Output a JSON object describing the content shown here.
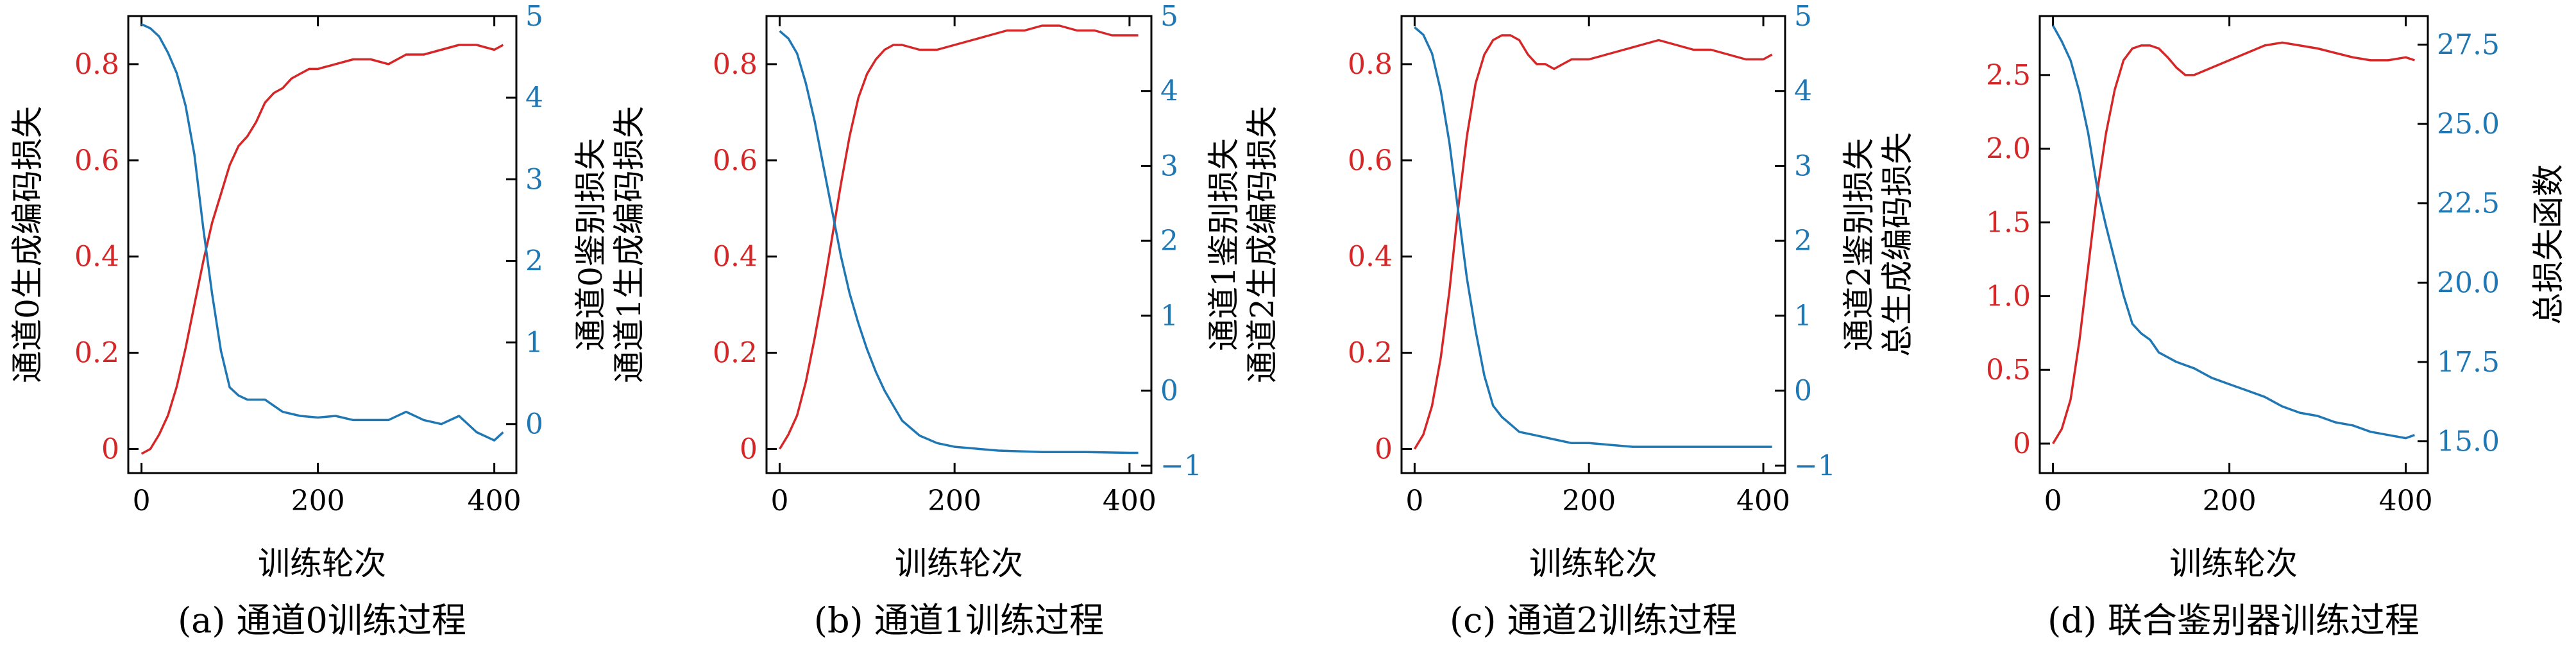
{
  "colors": {
    "left": "#d62728",
    "right": "#1f77b4",
    "axis": "#000000"
  },
  "panels": [
    {
      "caption": "(a) 通道0训练过程",
      "xlabel": "训练轮次",
      "ylabel_left": "通道0生成编码损失",
      "ylabel_right": [
        "通道0鉴别损失",
        "通道1生成编码损失"
      ]
    },
    {
      "caption": "(b) 通道1训练过程",
      "xlabel": "训练轮次",
      "ylabel_left": "",
      "ylabel_right": [
        "通道1鉴别损失",
        "通道2生成编码损失"
      ]
    },
    {
      "caption": "(c) 通道2训练过程",
      "xlabel": "训练轮次",
      "ylabel_left": "",
      "ylabel_right": [
        "通道2鉴别损失",
        "总生成编码损失"
      ]
    },
    {
      "caption": "(d) 联合鉴别器训练过程",
      "xlabel": "训练轮次",
      "ylabel_left": "",
      "ylabel_right": [
        "总损失函数"
      ]
    }
  ],
  "chart_data": [
    {
      "type": "line",
      "xlabel": "训练轮次",
      "xlim": [
        -15,
        425
      ],
      "xticks": [
        "0",
        "200",
        "400"
      ],
      "y_left": {
        "label": "通道0生成编码损失",
        "lim": [
          -0.05,
          0.9
        ],
        "ticks": [
          "0",
          "0.2",
          "0.4",
          "0.6",
          "0.8"
        ]
      },
      "y_right": {
        "label": "通道0鉴别损失",
        "lim": [
          -0.6,
          5
        ],
        "ticks": [
          "0",
          "1",
          "2",
          "3",
          "4",
          "5"
        ]
      },
      "series": [
        {
          "axis": "left",
          "color": "#d62728",
          "x": [
            0,
            10,
            20,
            30,
            40,
            50,
            60,
            70,
            80,
            90,
            100,
            110,
            120,
            130,
            140,
            150,
            160,
            170,
            180,
            190,
            200,
            220,
            240,
            260,
            280,
            300,
            320,
            340,
            360,
            380,
            400,
            410
          ],
          "y": [
            -0.01,
            0.0,
            0.03,
            0.07,
            0.13,
            0.21,
            0.3,
            0.39,
            0.47,
            0.53,
            0.59,
            0.63,
            0.65,
            0.68,
            0.72,
            0.74,
            0.75,
            0.77,
            0.78,
            0.79,
            0.79,
            0.8,
            0.81,
            0.81,
            0.8,
            0.82,
            0.82,
            0.83,
            0.84,
            0.84,
            0.83,
            0.84
          ]
        },
        {
          "axis": "right",
          "color": "#1f77b4",
          "x": [
            0,
            10,
            20,
            30,
            40,
            50,
            60,
            70,
            80,
            90,
            100,
            110,
            120,
            140,
            160,
            180,
            200,
            220,
            240,
            260,
            280,
            300,
            320,
            340,
            360,
            380,
            400,
            410
          ],
          "y": [
            4.9,
            4.85,
            4.75,
            4.55,
            4.3,
            3.9,
            3.3,
            2.4,
            1.6,
            0.9,
            0.45,
            0.35,
            0.3,
            0.3,
            0.15,
            0.1,
            0.08,
            0.1,
            0.05,
            0.05,
            0.05,
            0.15,
            0.05,
            0.0,
            0.1,
            -0.1,
            -0.2,
            -0.1
          ]
        }
      ]
    },
    {
      "type": "line",
      "xlabel": "训练轮次",
      "xlim": [
        -15,
        425
      ],
      "xticks": [
        "0",
        "200",
        "400"
      ],
      "y_left": {
        "label": "通道1生成编码损失",
        "lim": [
          -0.05,
          0.9
        ],
        "ticks": [
          "0",
          "0.2",
          "0.4",
          "0.6",
          "0.8"
        ]
      },
      "y_right": {
        "label": "通道1鉴别损失",
        "lim": [
          -1.1,
          5
        ],
        "ticks": [
          "−1",
          "0",
          "1",
          "2",
          "3",
          "4",
          "5"
        ]
      },
      "series": [
        {
          "axis": "left",
          "color": "#d62728",
          "x": [
            0,
            10,
            20,
            30,
            40,
            50,
            60,
            70,
            80,
            90,
            100,
            110,
            120,
            130,
            140,
            160,
            180,
            200,
            220,
            240,
            260,
            280,
            300,
            320,
            340,
            360,
            380,
            400,
            410
          ],
          "y": [
            0.0,
            0.03,
            0.07,
            0.14,
            0.23,
            0.33,
            0.44,
            0.55,
            0.65,
            0.73,
            0.78,
            0.81,
            0.83,
            0.84,
            0.84,
            0.83,
            0.83,
            0.84,
            0.85,
            0.86,
            0.87,
            0.87,
            0.88,
            0.88,
            0.87,
            0.87,
            0.86,
            0.86,
            0.86
          ]
        },
        {
          "axis": "right",
          "color": "#1f77b4",
          "x": [
            0,
            10,
            20,
            30,
            40,
            50,
            60,
            70,
            80,
            90,
            100,
            110,
            120,
            130,
            140,
            150,
            160,
            180,
            200,
            250,
            300,
            350,
            400,
            410
          ],
          "y": [
            4.8,
            4.7,
            4.5,
            4.1,
            3.6,
            3.0,
            2.4,
            1.8,
            1.3,
            0.9,
            0.55,
            0.25,
            0.0,
            -0.2,
            -0.4,
            -0.5,
            -0.6,
            -0.7,
            -0.75,
            -0.8,
            -0.82,
            -0.82,
            -0.83,
            -0.83
          ]
        }
      ]
    },
    {
      "type": "line",
      "xlabel": "训练轮次",
      "xlim": [
        -15,
        425
      ],
      "xticks": [
        "0",
        "200",
        "400"
      ],
      "y_left": {
        "label": "通道2生成编码损失",
        "lim": [
          -0.05,
          0.9
        ],
        "ticks": [
          "0",
          "0.2",
          "0.4",
          "0.6",
          "0.8"
        ]
      },
      "y_right": {
        "label": "通道2鉴别损失",
        "lim": [
          -1.1,
          5
        ],
        "ticks": [
          "−1",
          "0",
          "1",
          "2",
          "3",
          "4",
          "5"
        ]
      },
      "series": [
        {
          "axis": "left",
          "color": "#d62728",
          "x": [
            0,
            10,
            20,
            30,
            40,
            50,
            60,
            70,
            80,
            90,
            100,
            110,
            120,
            130,
            140,
            150,
            160,
            170,
            180,
            200,
            220,
            240,
            260,
            280,
            300,
            320,
            340,
            360,
            380,
            400,
            410
          ],
          "y": [
            0.0,
            0.03,
            0.09,
            0.19,
            0.33,
            0.5,
            0.65,
            0.76,
            0.82,
            0.85,
            0.86,
            0.86,
            0.85,
            0.82,
            0.8,
            0.8,
            0.79,
            0.8,
            0.81,
            0.81,
            0.82,
            0.83,
            0.84,
            0.85,
            0.84,
            0.83,
            0.83,
            0.82,
            0.81,
            0.81,
            0.82
          ]
        },
        {
          "axis": "right",
          "color": "#1f77b4",
          "x": [
            0,
            10,
            20,
            30,
            40,
            50,
            60,
            70,
            80,
            90,
            100,
            110,
            120,
            140,
            160,
            180,
            200,
            250,
            300,
            350,
            400,
            410
          ],
          "y": [
            4.85,
            4.75,
            4.5,
            4.0,
            3.3,
            2.4,
            1.5,
            0.8,
            0.2,
            -0.2,
            -0.35,
            -0.45,
            -0.55,
            -0.6,
            -0.65,
            -0.7,
            -0.7,
            -0.75,
            -0.75,
            -0.75,
            -0.75,
            -0.75
          ]
        }
      ]
    },
    {
      "type": "line",
      "xlabel": "训练轮次",
      "xlim": [
        -15,
        425
      ],
      "xticks": [
        "0",
        "200",
        "400"
      ],
      "y_left": {
        "label": "总生成编码损失",
        "lim": [
          -0.2,
          2.9
        ],
        "ticks": [
          "0",
          "0.5",
          "1.0",
          "1.5",
          "2.0",
          "2.5"
        ]
      },
      "y_right": {
        "label": "总损失函数",
        "lim": [
          14,
          28.4
        ],
        "ticks": [
          "15.0",
          "17.5",
          "20.0",
          "22.5",
          "25.0",
          "27.5"
        ]
      },
      "series": [
        {
          "axis": "left",
          "color": "#d62728",
          "x": [
            0,
            10,
            20,
            30,
            40,
            50,
            60,
            70,
            80,
            90,
            100,
            110,
            120,
            130,
            140,
            150,
            160,
            180,
            200,
            220,
            240,
            260,
            280,
            300,
            320,
            340,
            360,
            380,
            400,
            410
          ],
          "y": [
            0.0,
            0.1,
            0.3,
            0.7,
            1.2,
            1.7,
            2.1,
            2.4,
            2.6,
            2.68,
            2.7,
            2.7,
            2.68,
            2.62,
            2.55,
            2.5,
            2.5,
            2.55,
            2.6,
            2.65,
            2.7,
            2.72,
            2.7,
            2.68,
            2.65,
            2.62,
            2.6,
            2.6,
            2.62,
            2.6
          ]
        },
        {
          "axis": "right",
          "color": "#1f77b4",
          "x": [
            0,
            10,
            20,
            30,
            40,
            50,
            60,
            70,
            80,
            90,
            100,
            110,
            120,
            140,
            160,
            180,
            200,
            220,
            240,
            260,
            280,
            300,
            320,
            340,
            360,
            380,
            400,
            410
          ],
          "y": [
            28.1,
            27.6,
            27.0,
            26.0,
            24.7,
            23.0,
            21.8,
            20.7,
            19.6,
            18.7,
            18.4,
            18.2,
            17.8,
            17.5,
            17.3,
            17.0,
            16.8,
            16.6,
            16.4,
            16.1,
            15.9,
            15.8,
            15.6,
            15.5,
            15.3,
            15.2,
            15.1,
            15.2
          ]
        }
      ]
    }
  ]
}
